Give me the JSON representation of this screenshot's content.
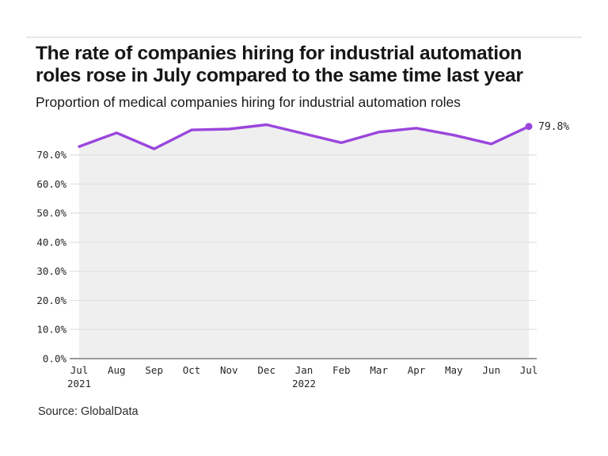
{
  "header": {
    "title_line1": "The rate of companies hiring for industrial automation",
    "title_line2": "roles rose in July compared to the same time last year",
    "subtitle": "Proportion of medical companies hiring for industrial automation roles"
  },
  "footer": {
    "source": "Source: GlobalData"
  },
  "chart_data": {
    "type": "area",
    "title": "The rate of companies hiring for industrial automation roles rose in July compared to the same time last year",
    "subtitle": "Proportion of medical companies hiring for industrial automation roles",
    "categories": [
      "Jul",
      "Aug",
      "Sep",
      "Oct",
      "Nov",
      "Dec",
      "Jan",
      "Feb",
      "Mar",
      "Apr",
      "May",
      "Jun",
      "Jul"
    ],
    "secondary_x_labels": [
      {
        "index": 0,
        "label": "2021"
      },
      {
        "index": 6,
        "label": "2022"
      }
    ],
    "values": [
      72.9,
      77.6,
      72.1,
      78.6,
      78.9,
      80.4,
      77.3,
      74.2,
      77.9,
      79.2,
      76.8,
      73.8,
      79.8
    ],
    "end_point_label": "79.8%",
    "y_ticks": [
      0,
      10,
      20,
      30,
      40,
      50,
      60,
      70
    ],
    "y_tick_labels": [
      "0.0%",
      "10.0%",
      "20.0%",
      "30.0%",
      "40.0%",
      "50.0%",
      "60.0%",
      "70.0%"
    ],
    "ylim": [
      0,
      83.8
    ],
    "grid": true,
    "legend": false,
    "xlabel": "",
    "ylabel": "",
    "line_color": "#9a46dd",
    "area_fill_color": "#efefef",
    "axis_color": "#9a9a9a",
    "grid_color": "#e2e2e2",
    "tick_label_color": "#262626",
    "annotation_color": "#262626"
  }
}
